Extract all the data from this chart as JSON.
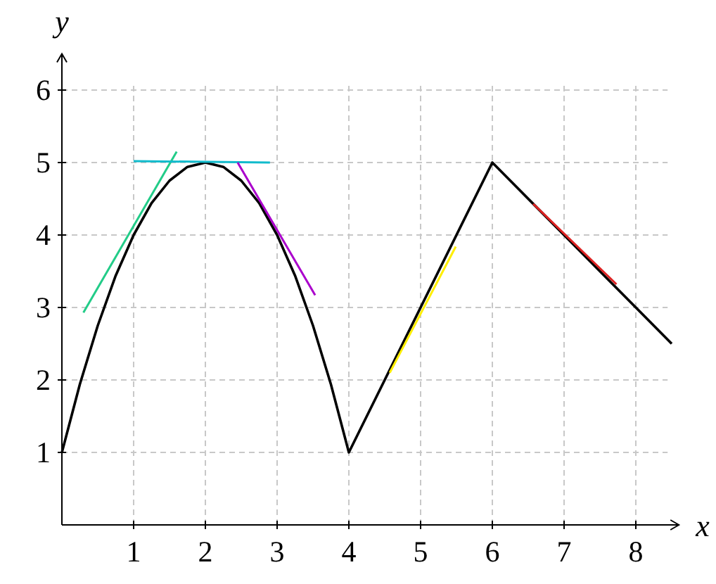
{
  "chart_data": {
    "type": "line",
    "xlabel": "x",
    "ylabel": "y",
    "xlim": [
      0,
      8.6
    ],
    "ylim": [
      0,
      6.5
    ],
    "xticks": [
      1,
      2,
      3,
      4,
      5,
      6,
      7,
      8
    ],
    "yticks": [
      1,
      2,
      3,
      4,
      5,
      6
    ],
    "grid": true,
    "series": [
      {
        "color": "#000000",
        "x": [
          0,
          0.25,
          0.5,
          0.75,
          1,
          1.25,
          1.5,
          1.75,
          2,
          2.25,
          2.5,
          2.75,
          3,
          3.25,
          3.5,
          3.75,
          4,
          6,
          8.5
        ],
        "values": [
          1,
          1.94,
          2.75,
          3.44,
          4,
          4.44,
          4.75,
          4.94,
          5,
          4.94,
          4.75,
          4.44,
          4,
          3.44,
          2.75,
          1.94,
          1,
          5,
          2.5
        ]
      },
      {
        "color": "#22cc88",
        "x": [
          0.3,
          1.6
        ],
        "values": [
          2.93,
          5.15
        ]
      },
      {
        "color": "#11bbcc",
        "x": [
          1,
          2.9
        ],
        "values": [
          5.02,
          5.0
        ]
      },
      {
        "color": "#aa00cc",
        "x": [
          2.45,
          3.53
        ],
        "values": [
          5.0,
          3.17
        ]
      },
      {
        "color": "#ffee00",
        "x": [
          4.57,
          5.49
        ],
        "values": [
          2.1,
          3.84
        ]
      },
      {
        "color": "#dd2222",
        "x": [
          6.57,
          7.73
        ],
        "values": [
          4.43,
          3.32
        ]
      }
    ]
  }
}
